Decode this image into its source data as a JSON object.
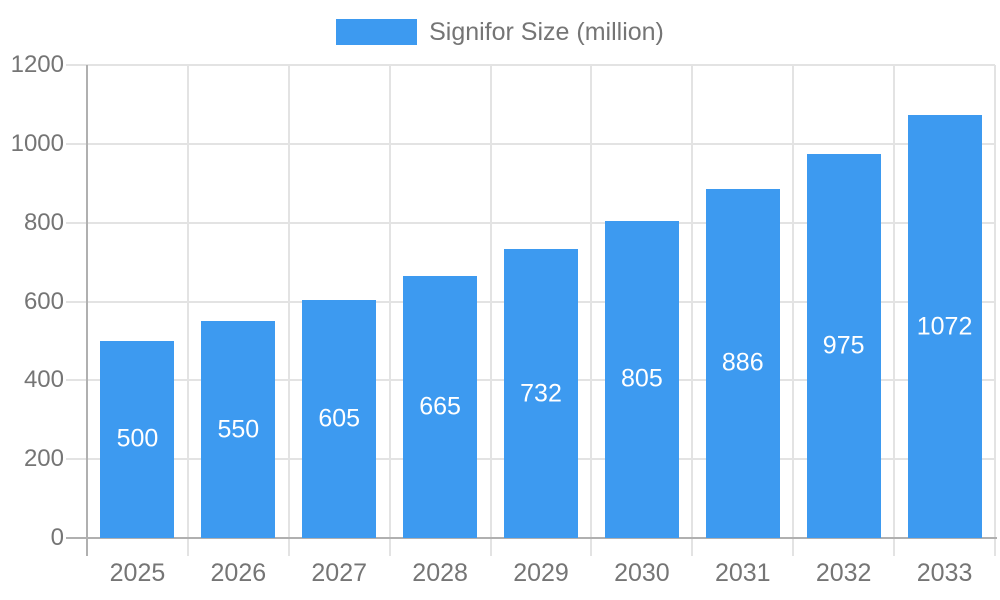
{
  "chart_data": {
    "type": "bar",
    "legend": {
      "label": "Signifor Size (million)",
      "position": "top"
    },
    "categories": [
      "2025",
      "2026",
      "2027",
      "2028",
      "2029",
      "2030",
      "2031",
      "2032",
      "2033"
    ],
    "series": [
      {
        "name": "Signifor Size (million)",
        "values": [
          500,
          550,
          605,
          665,
          732,
          805,
          886,
          975,
          1072
        ],
        "color": "#3D9AF0"
      }
    ],
    "xlabel": "",
    "ylabel": "",
    "ylim": [
      0,
      1200
    ],
    "y_ticks": [
      0,
      200,
      400,
      600,
      800,
      1000,
      1200
    ],
    "grid": true,
    "colors": {
      "bar": "#3D9AF0",
      "bar_value_label": "#FFFFFF",
      "axis_text": "#757575",
      "grid_line": "#E3E3E3",
      "axis_line": "#B0B0B0",
      "background": "#FFFFFF"
    }
  }
}
